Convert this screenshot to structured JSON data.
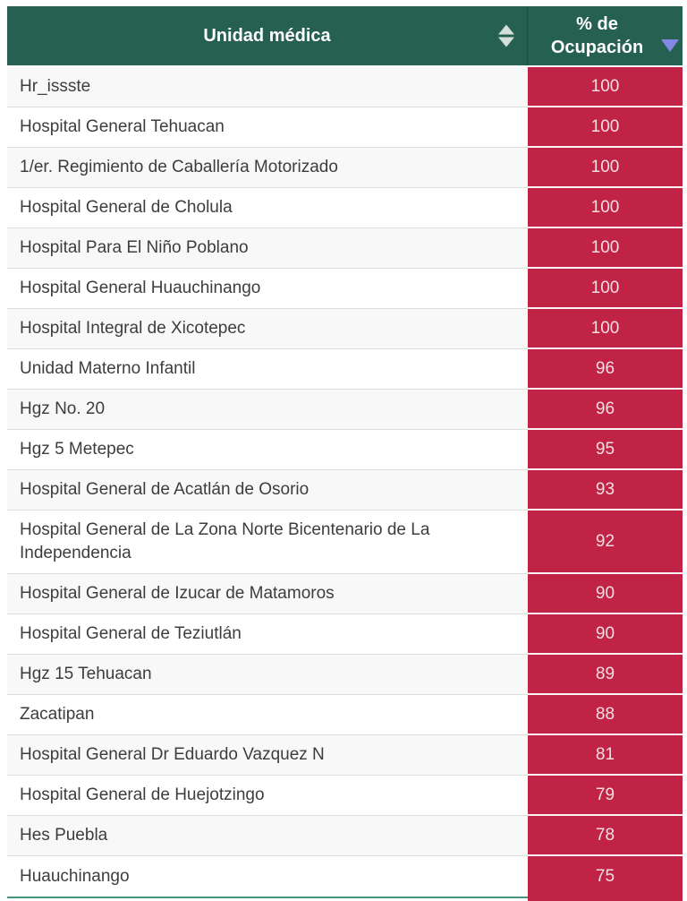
{
  "colors": {
    "header_background": "#266050",
    "header_text": "#ffffff",
    "occupancy_cell_background": "#c02345",
    "occupancy_cell_text": "#f5dde2",
    "bottom_border_teal": "#44947f",
    "sort_triangle_blue": "#8288e3",
    "row_text": "#3d3d3d",
    "row_alt_background": "#f8f8f8"
  },
  "table": {
    "header": {
      "unit_column_label": "Unidad médica",
      "occupancy_column_label": "% de Ocupación",
      "unit_sort_icon": "up-down-triangles",
      "occupancy_sort_icon": "down-triangle-descending"
    },
    "rows": [
      {
        "name": "Hr_issste",
        "value": "100"
      },
      {
        "name": "Hospital General Tehuacan",
        "value": "100"
      },
      {
        "name": "1/er. Regimiento de Caballería Motorizado",
        "value": "100"
      },
      {
        "name": "Hospital General de Cholula",
        "value": "100"
      },
      {
        "name": "Hospital Para El Niño Poblano",
        "value": "100"
      },
      {
        "name": "Hospital General Huauchinango",
        "value": "100"
      },
      {
        "name": "Hospital Integral de Xicotepec",
        "value": "100"
      },
      {
        "name": "Unidad Materno Infantil",
        "value": "96"
      },
      {
        "name": "Hgz No. 20",
        "value": "96"
      },
      {
        "name": "Hgz 5 Metepec",
        "value": "95"
      },
      {
        "name": "Hospital General de Acatlán de Osorio",
        "value": "93"
      },
      {
        "name": "Hospital General de La Zona Norte Bicentenario de La Independencia",
        "value": "92"
      },
      {
        "name": "Hospital General de Izucar de Matamoros",
        "value": "90"
      },
      {
        "name": "Hospital General de Teziutlán",
        "value": "90"
      },
      {
        "name": "Hgz 15 Tehuacan",
        "value": "89"
      },
      {
        "name": "Zacatipan",
        "value": "88"
      },
      {
        "name": "Hospital General Dr Eduardo Vazquez N",
        "value": "81"
      },
      {
        "name": "Hospital General de Huejotzingo",
        "value": "79"
      },
      {
        "name": "Hes Puebla",
        "value": "78"
      },
      {
        "name": "Huauchinango",
        "value": "75"
      }
    ]
  }
}
